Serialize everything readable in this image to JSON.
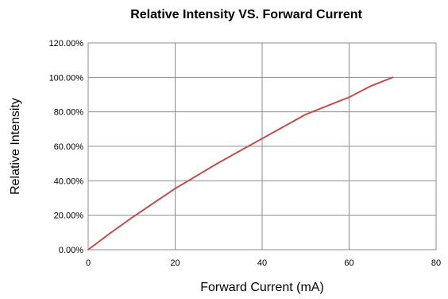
{
  "chart_data": {
    "type": "line",
    "title": "Relative Intensity VS. Forward Current",
    "xlabel": "Forward Current (mA)",
    "ylabel": "Relative Intensity",
    "xlim": [
      0,
      80
    ],
    "ylim": [
      0,
      120
    ],
    "x_ticks": [
      0,
      20,
      40,
      60,
      80
    ],
    "y_ticks": [
      0,
      20,
      40,
      60,
      80,
      100,
      120
    ],
    "x_tick_labels": [
      "0",
      "20",
      "40",
      "60",
      "80"
    ],
    "y_tick_labels": [
      "0.00%",
      "20.00%",
      "40.00%",
      "60.00%",
      "80.00%",
      "100.00%",
      "120.00%"
    ],
    "grid": true,
    "series": [
      {
        "color": "#c0504d",
        "x": [
          0,
          5,
          10,
          15,
          20,
          25,
          30,
          35,
          40,
          45,
          50,
          55,
          60,
          65,
          70
        ],
        "y": [
          0,
          9.5,
          18.5,
          27,
          35.5,
          43,
          50.5,
          57.5,
          64.5,
          71.5,
          78.5,
          83.5,
          88.5,
          95,
          100
        ]
      }
    ]
  }
}
